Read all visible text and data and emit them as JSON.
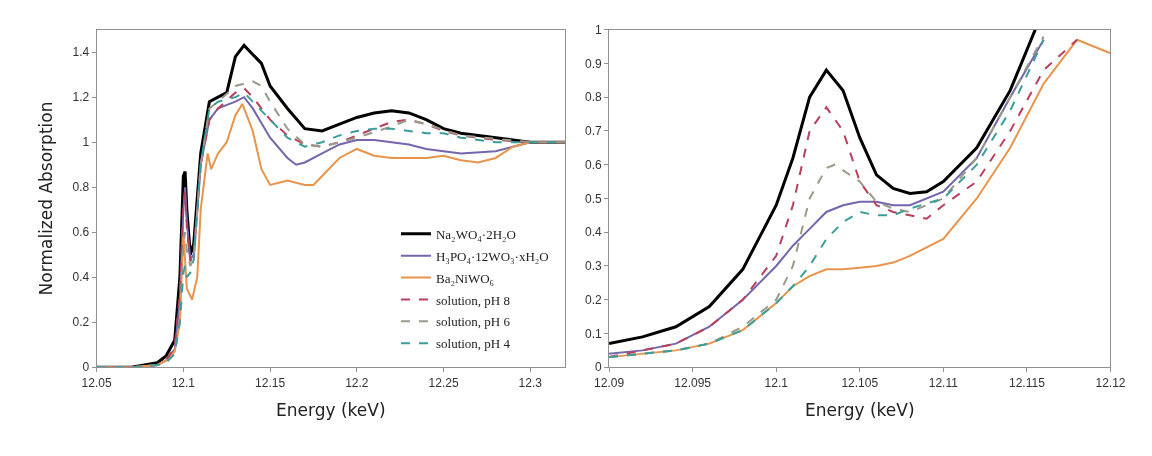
{
  "chart_data": [
    {
      "type": "line",
      "xlabel": "Energy (keV)",
      "ylabel": "Normalized Absorption",
      "xlim": [
        12.05,
        12.32
      ],
      "xticks": [
        12.05,
        12.1,
        12.15,
        12.2,
        12.25,
        12.3
      ],
      "ylim": [
        0,
        1.5
      ],
      "yticks": [
        0,
        0.2,
        0.4,
        0.6,
        0.8,
        1,
        1.2,
        1.4
      ],
      "legend": "bottom right",
      "marker": "none",
      "series": [
        {
          "name": "Na₂WO₄·2H₂O",
          "color": "#000000",
          "line_style": "solid",
          "x": [
            12.05,
            12.07,
            12.085,
            12.09,
            12.095,
            12.098,
            12.1,
            12.101,
            12.102,
            12.104,
            12.106,
            12.11,
            12.115,
            12.12,
            12.125,
            12.13,
            12.135,
            12.14,
            12.145,
            12.15,
            12.16,
            12.17,
            12.18,
            12.19,
            12.2,
            12.21,
            12.22,
            12.23,
            12.24,
            12.25,
            12.26,
            12.27,
            12.29,
            12.3,
            12.32
          ],
          "values": [
            0,
            0,
            0.02,
            0.05,
            0.12,
            0.4,
            0.85,
            0.87,
            0.7,
            0.5,
            0.55,
            0.95,
            1.18,
            1.2,
            1.22,
            1.38,
            1.43,
            1.39,
            1.35,
            1.25,
            1.15,
            1.06,
            1.05,
            1.08,
            1.11,
            1.13,
            1.14,
            1.13,
            1.1,
            1.06,
            1.04,
            1.03,
            1.01,
            1.0,
            1.0
          ]
        },
        {
          "name": "H₃PO₄·12WO₃·xH₂O",
          "color": "#7565ad",
          "line_style": "solid",
          "x": [
            12.05,
            12.07,
            12.085,
            12.09,
            12.095,
            12.098,
            12.1,
            12.101,
            12.102,
            12.104,
            12.106,
            12.11,
            12.115,
            12.12,
            12.13,
            12.135,
            12.14,
            12.15,
            12.16,
            12.165,
            12.17,
            12.18,
            12.19,
            12.2,
            12.21,
            12.22,
            12.23,
            12.24,
            12.26,
            12.28,
            12.29,
            12.3,
            12.32
          ],
          "values": [
            0,
            0,
            0.01,
            0.03,
            0.08,
            0.3,
            0.7,
            0.8,
            0.65,
            0.48,
            0.5,
            0.9,
            1.1,
            1.15,
            1.18,
            1.2,
            1.15,
            1.02,
            0.93,
            0.9,
            0.91,
            0.95,
            0.99,
            1.01,
            1.01,
            1.0,
            0.99,
            0.97,
            0.95,
            0.96,
            0.98,
            1.0,
            1.0
          ]
        },
        {
          "name": "Ba₂NiWO₆",
          "color": "#e8944c",
          "line_style": "solid",
          "x": [
            12.05,
            12.07,
            12.085,
            12.09,
            12.095,
            12.098,
            12.1,
            12.102,
            12.105,
            12.108,
            12.11,
            12.114,
            12.116,
            12.12,
            12.125,
            12.13,
            12.134,
            12.14,
            12.145,
            12.15,
            12.155,
            12.16,
            12.17,
            12.175,
            12.18,
            12.19,
            12.2,
            12.21,
            12.22,
            12.24,
            12.25,
            12.26,
            12.27,
            12.28,
            12.29,
            12.3,
            12.32
          ],
          "values": [
            0,
            0,
            0.01,
            0.03,
            0.07,
            0.2,
            0.6,
            0.35,
            0.3,
            0.4,
            0.7,
            0.95,
            0.88,
            0.95,
            1.0,
            1.12,
            1.17,
            1.05,
            0.88,
            0.81,
            0.82,
            0.83,
            0.81,
            0.81,
            0.85,
            0.93,
            0.97,
            0.94,
            0.93,
            0.93,
            0.94,
            0.92,
            0.91,
            0.93,
            0.98,
            1.0,
            1.0
          ]
        },
        {
          "name": "solution, pH 8",
          "color": "#b8405c",
          "line_style": "dashed",
          "x": [
            12.05,
            12.07,
            12.085,
            12.09,
            12.095,
            12.098,
            12.1,
            12.101,
            12.102,
            12.104,
            12.106,
            12.11,
            12.115,
            12.12,
            12.13,
            12.135,
            12.14,
            12.15,
            12.16,
            12.17,
            12.18,
            12.19,
            12.2,
            12.21,
            12.22,
            12.23,
            12.24,
            12.25,
            12.26,
            12.28,
            12.3,
            12.32
          ],
          "values": [
            0,
            0,
            0.01,
            0.03,
            0.09,
            0.33,
            0.72,
            0.78,
            0.62,
            0.47,
            0.5,
            0.9,
            1.1,
            1.15,
            1.22,
            1.24,
            1.2,
            1.1,
            1.03,
            0.99,
            0.98,
            1.0,
            1.03,
            1.06,
            1.09,
            1.1,
            1.08,
            1.05,
            1.03,
            1.01,
            1.0,
            1.0
          ]
        },
        {
          "name": "solution, pH 6",
          "color": "#9a9a8a",
          "line_style": "dashed",
          "x": [
            12.05,
            12.07,
            12.085,
            12.09,
            12.095,
            12.098,
            12.1,
            12.101,
            12.102,
            12.104,
            12.106,
            12.11,
            12.115,
            12.12,
            12.13,
            12.14,
            12.145,
            12.15,
            12.16,
            12.17,
            12.18,
            12.2,
            12.22,
            12.23,
            12.24,
            12.26,
            12.3,
            12.32
          ],
          "values": [
            0,
            0,
            0.01,
            0.02,
            0.06,
            0.22,
            0.55,
            0.6,
            0.52,
            0.45,
            0.48,
            0.9,
            1.15,
            1.18,
            1.25,
            1.27,
            1.25,
            1.18,
            1.06,
            0.99,
            0.98,
            1.02,
            1.07,
            1.1,
            1.08,
            1.03,
            1.0,
            1.0
          ]
        },
        {
          "name": "solution, pH 4",
          "color": "#3a9e9a",
          "line_style": "dashed",
          "x": [
            12.05,
            12.07,
            12.085,
            12.09,
            12.095,
            12.098,
            12.1,
            12.101,
            12.102,
            12.104,
            12.106,
            12.11,
            12.115,
            12.12,
            12.13,
            12.135,
            12.14,
            12.15,
            12.16,
            12.17,
            12.18,
            12.19,
            12.2,
            12.21,
            12.22,
            12.23,
            12.24,
            12.25,
            12.26,
            12.28,
            12.3,
            12.32
          ],
          "values": [
            0,
            0,
            0.01,
            0.02,
            0.06,
            0.2,
            0.42,
            0.45,
            0.4,
            0.42,
            0.48,
            0.9,
            1.15,
            1.18,
            1.2,
            1.22,
            1.18,
            1.1,
            1.02,
            0.98,
            1.0,
            1.03,
            1.05,
            1.06,
            1.06,
            1.05,
            1.04,
            1.04,
            1.02,
            1.0,
            1.0,
            1.0
          ]
        }
      ]
    },
    {
      "type": "line",
      "xlabel": "Energy (keV)",
      "xlim": [
        12.09,
        12.12
      ],
      "xticks": [
        12.09,
        12.095,
        12.1,
        12.105,
        12.11,
        12.115,
        12.12
      ],
      "ylim": [
        0,
        1
      ],
      "yticks": [
        0,
        0.1,
        0.2,
        0.3,
        0.4,
        0.5,
        0.6,
        0.7,
        0.8,
        0.9,
        1
      ],
      "marker": "none",
      "series": [
        {
          "color": "#000000",
          "line_style": "solid",
          "x": [
            12.09,
            12.092,
            12.094,
            12.096,
            12.098,
            12.1,
            12.101,
            12.102,
            12.103,
            12.104,
            12.105,
            12.106,
            12.107,
            12.108,
            12.109,
            12.11,
            12.112,
            12.114,
            12.1155
          ],
          "values": [
            0.07,
            0.09,
            0.12,
            0.18,
            0.29,
            0.48,
            0.62,
            0.8,
            0.88,
            0.82,
            0.68,
            0.57,
            0.53,
            0.515,
            0.52,
            0.55,
            0.65,
            0.82,
            1.0
          ]
        },
        {
          "color": "#7565ad",
          "line_style": "solid",
          "x": [
            12.09,
            12.092,
            12.094,
            12.096,
            12.098,
            12.1,
            12.101,
            12.102,
            12.103,
            12.104,
            12.105,
            12.106,
            12.107,
            12.108,
            12.11,
            12.112,
            12.114,
            12.116
          ],
          "values": [
            0.04,
            0.05,
            0.07,
            0.12,
            0.2,
            0.3,
            0.36,
            0.41,
            0.46,
            0.48,
            0.49,
            0.49,
            0.48,
            0.48,
            0.52,
            0.62,
            0.8,
            0.97
          ]
        },
        {
          "color": "#e8944c",
          "line_style": "solid",
          "x": [
            12.09,
            12.094,
            12.096,
            12.098,
            12.1,
            12.101,
            12.102,
            12.103,
            12.104,
            12.105,
            12.106,
            12.107,
            12.108,
            12.11,
            12.112,
            12.114,
            12.116,
            12.118,
            12.12
          ],
          "values": [
            0.03,
            0.05,
            0.07,
            0.11,
            0.19,
            0.24,
            0.27,
            0.29,
            0.29,
            0.295,
            0.3,
            0.31,
            0.33,
            0.38,
            0.5,
            0.65,
            0.84,
            0.97,
            0.93
          ]
        },
        {
          "color": "#b8405c",
          "line_style": "dashed",
          "x": [
            12.09,
            12.092,
            12.094,
            12.096,
            12.098,
            12.1,
            12.101,
            12.102,
            12.103,
            12.104,
            12.105,
            12.106,
            12.107,
            12.108,
            12.109,
            12.11,
            12.112,
            12.114,
            12.116,
            12.118
          ],
          "values": [
            0.03,
            0.05,
            0.07,
            0.12,
            0.2,
            0.33,
            0.48,
            0.7,
            0.77,
            0.7,
            0.55,
            0.48,
            0.46,
            0.45,
            0.44,
            0.48,
            0.55,
            0.7,
            0.88,
            0.97
          ]
        },
        {
          "color": "#9a9a8a",
          "line_style": "dashed",
          "x": [
            12.09,
            12.094,
            12.096,
            12.098,
            12.1,
            12.101,
            12.102,
            12.103,
            12.1035,
            12.105,
            12.106,
            12.107,
            12.108,
            12.11,
            12.112,
            12.114,
            12.116
          ],
          "values": [
            0.03,
            0.05,
            0.07,
            0.12,
            0.2,
            0.3,
            0.5,
            0.59,
            0.6,
            0.55,
            0.49,
            0.47,
            0.46,
            0.5,
            0.62,
            0.8,
            0.98
          ]
        },
        {
          "color": "#3a9e9a",
          "line_style": "dashed",
          "x": [
            12.09,
            12.094,
            12.096,
            12.098,
            12.1,
            12.101,
            12.102,
            12.103,
            12.104,
            12.105,
            12.106,
            12.107,
            12.108,
            12.11,
            12.112,
            12.114,
            12.116
          ],
          "values": [
            0.03,
            0.05,
            0.07,
            0.11,
            0.19,
            0.24,
            0.3,
            0.38,
            0.43,
            0.46,
            0.45,
            0.45,
            0.47,
            0.5,
            0.6,
            0.76,
            0.97
          ]
        }
      ]
    }
  ]
}
